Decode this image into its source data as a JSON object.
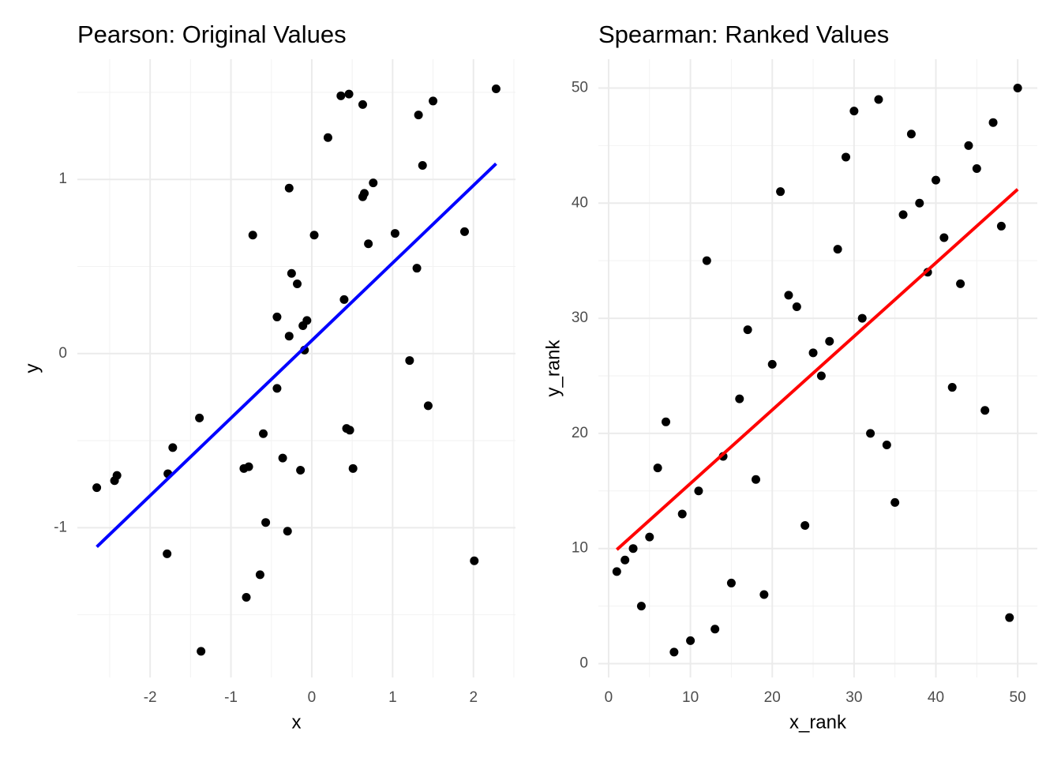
{
  "chart_data": [
    {
      "type": "scatter",
      "title": "Pearson: Original Values",
      "x_label": "x",
      "y_label": "y",
      "xlim": [
        -2.9,
        2.52
      ],
      "ylim": [
        -1.86,
        1.69
      ],
      "xticks": [
        -2,
        -1,
        0,
        1,
        2
      ],
      "yticks": [
        -1,
        0,
        1
      ],
      "grid": true,
      "point_color": "#000000",
      "x": [
        -2.66,
        -2.44,
        -2.41,
        -1.79,
        -1.78,
        -1.72,
        -1.39,
        -1.37,
        -0.84,
        -0.78,
        -0.81,
        -0.73,
        -0.64,
        -0.6,
        -0.57,
        -0.43,
        -0.43,
        -0.36,
        -0.3,
        -0.28,
        -0.28,
        -0.25,
        -0.18,
        -0.14,
        -0.11,
        -0.09,
        -0.06,
        0.03,
        0.2,
        0.36,
        0.4,
        0.43,
        0.46,
        0.47,
        0.51,
        0.63,
        0.63,
        0.65,
        0.7,
        0.76,
        1.03,
        1.21,
        1.3,
        1.32,
        1.37,
        1.44,
        1.5,
        1.89,
        2.01,
        2.28
      ],
      "values": [
        -0.77,
        -0.73,
        -0.7,
        -1.15,
        -0.69,
        -0.54,
        -0.37,
        -1.71,
        -0.66,
        -0.65,
        -1.4,
        0.68,
        -1.27,
        -0.46,
        -0.97,
        0.21,
        -0.2,
        -0.6,
        -1.02,
        0.95,
        0.1,
        0.46,
        0.4,
        -0.67,
        0.16,
        0.02,
        0.19,
        0.68,
        1.24,
        1.48,
        0.31,
        -0.43,
        1.49,
        -0.44,
        -0.66,
        1.43,
        0.9,
        0.92,
        0.63,
        0.98,
        0.69,
        -0.04,
        0.49,
        1.37,
        1.08,
        -0.3,
        1.45,
        0.7,
        -1.19,
        1.52
      ],
      "fit": {
        "x": [
          -2.66,
          2.28
        ],
        "values": [
          -1.11,
          1.09
        ],
        "color": "#0000ff"
      }
    },
    {
      "type": "scatter",
      "title": "Spearman: Ranked Values",
      "x_label": "x_rank",
      "y_label": "y_rank",
      "xlim": [
        -1.25,
        52.4
      ],
      "ylim": [
        -1.2,
        52.5
      ],
      "xticks": [
        0,
        10,
        20,
        30,
        40,
        50
      ],
      "yticks": [
        0,
        10,
        20,
        30,
        40,
        50
      ],
      "grid": true,
      "point_color": "#000000",
      "x": [
        1,
        2,
        3,
        4,
        5,
        6,
        7,
        8,
        9,
        10,
        11,
        12,
        13,
        14,
        15,
        16,
        17,
        18,
        19,
        20,
        21,
        22,
        23,
        24,
        25,
        26,
        27,
        28,
        29,
        30,
        31,
        32,
        33,
        34,
        35,
        36,
        37,
        38,
        39,
        40,
        41,
        42,
        43,
        44,
        45,
        46,
        47,
        48,
        49,
        50
      ],
      "values": [
        8,
        9,
        10,
        5,
        11,
        17,
        21,
        1,
        13,
        2,
        15,
        35,
        3,
        18,
        7,
        23,
        29,
        16,
        6,
        26,
        41,
        32,
        31,
        12,
        27,
        25,
        28,
        36,
        44,
        48,
        30,
        20,
        49,
        19,
        14,
        39,
        46,
        40,
        34,
        42,
        37,
        24,
        33,
        45,
        43,
        22,
        47,
        38,
        4,
        50
      ],
      "fit": {
        "x": [
          1,
          50
        ],
        "values": [
          9.9,
          41.2
        ],
        "color": "#ff0000"
      }
    }
  ]
}
